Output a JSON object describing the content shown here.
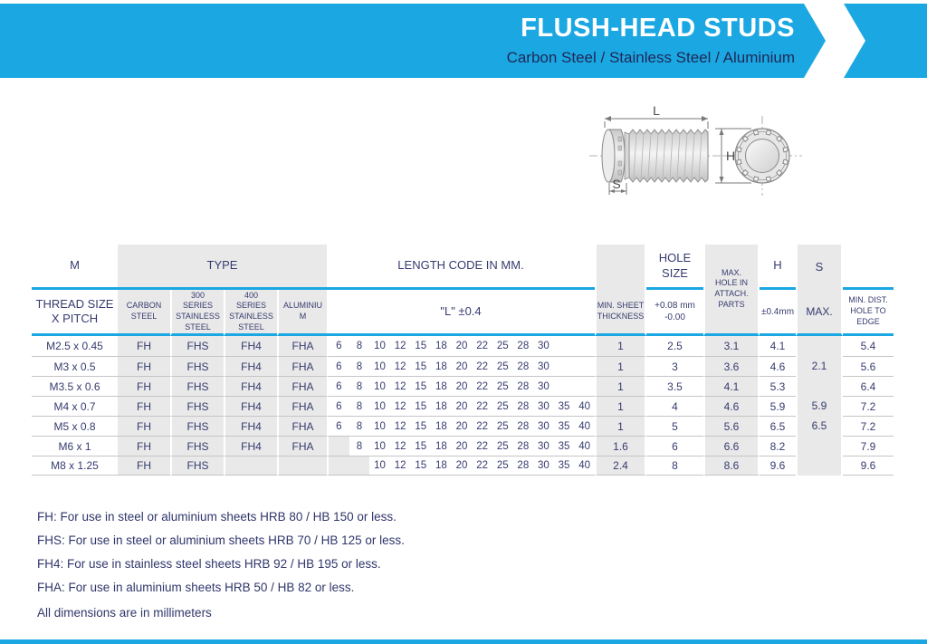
{
  "banner": {
    "title": "FLUSH-HEAD STUDS",
    "subtitle": "Carbon Steel / Stainless Steel / Aluminium",
    "accent_color": "#1ba7e2"
  },
  "diagram": {
    "labels": {
      "length": "L",
      "height": "H",
      "shoulder": "S"
    }
  },
  "table": {
    "group_headers": {
      "m": "M",
      "type": "TYPE",
      "length": "LENGTH CODE IN MM.",
      "hole_size": "HOLE SIZE",
      "h": "H",
      "s": "S"
    },
    "sub_headers": {
      "thread": "THREAD SIZE X PITCH",
      "type_cols": [
        "CARBON STEEL",
        "300 SERIES STAINLESS STEEL",
        "400 SERIES STAINLESS STEEL",
        "ALUMINIUM"
      ],
      "length": "\"L\" ±0.4",
      "min_sheet": "MIN. SHEET THICKNESS",
      "hole_tol": [
        "+0.08 mm",
        "-0.00"
      ],
      "max_hole": "MAX. HOLE IN ATTACH. PARTS",
      "h_tol": "±0.4mm",
      "s_max": "MAX.",
      "min_dist": "MIN. DIST. HOLE TO EDGE"
    },
    "length_slots": [
      6,
      8,
      10,
      12,
      15,
      18,
      20,
      22,
      25,
      28,
      30,
      35,
      40
    ],
    "rows": [
      {
        "thread": "M2.5 x 0.45",
        "types": [
          "FH",
          "FHS",
          "FH4",
          "FHA"
        ],
        "lengths": [
          6,
          8,
          10,
          12,
          15,
          18,
          20,
          22,
          25,
          28,
          30
        ],
        "min_sheet": "1",
        "hole_size": "2.5",
        "max_hole": "3.1",
        "h": "4.1",
        "s": "",
        "min_dist": "5.4"
      },
      {
        "thread": "M3 x 0.5",
        "types": [
          "FH",
          "FHS",
          "FH4",
          "FHA"
        ],
        "lengths": [
          6,
          8,
          10,
          12,
          15,
          18,
          20,
          22,
          25,
          28,
          30
        ],
        "min_sheet": "1",
        "hole_size": "3",
        "max_hole": "3.6",
        "h": "4.6",
        "s": "2.1",
        "min_dist": "5.6"
      },
      {
        "thread": "M3.5 x 0.6",
        "types": [
          "FH",
          "FHS",
          "FH4",
          "FHA"
        ],
        "lengths": [
          6,
          8,
          10,
          12,
          15,
          18,
          20,
          22,
          25,
          28,
          30
        ],
        "min_sheet": "1",
        "hole_size": "3.5",
        "max_hole": "4.1",
        "h": "5.3",
        "s": "",
        "min_dist": "6.4"
      },
      {
        "thread": "M4 x 0.7",
        "types": [
          "FH",
          "FHS",
          "FH4",
          "FHA"
        ],
        "lengths": [
          6,
          8,
          10,
          12,
          15,
          18,
          20,
          22,
          25,
          28,
          30,
          35,
          40
        ],
        "min_sheet": "1",
        "hole_size": "4",
        "max_hole": "4.6",
        "h": "5.9",
        "s": "5.9",
        "min_dist": "7.2"
      },
      {
        "thread": "M5 x 0.8",
        "types": [
          "FH",
          "FHS",
          "FH4",
          "FHA"
        ],
        "lengths": [
          6,
          8,
          10,
          12,
          15,
          18,
          20,
          22,
          25,
          28,
          30,
          35,
          40
        ],
        "min_sheet": "1",
        "hole_size": "5",
        "max_hole": "5.6",
        "h": "6.5",
        "s": "6.5",
        "min_dist": "7.2"
      },
      {
        "thread": "M6 x 1",
        "types": [
          "FH",
          "FHS",
          "FH4",
          "FHA"
        ],
        "lengths": [
          8,
          10,
          12,
          15,
          18,
          20,
          22,
          25,
          28,
          30,
          35,
          40
        ],
        "min_sheet": "1.6",
        "hole_size": "6",
        "max_hole": "6.6",
        "h": "8.2",
        "s": "",
        "min_dist": "7.9"
      },
      {
        "thread": "M8 x 1.25",
        "types": [
          "FH",
          "FHS",
          "",
          ""
        ],
        "lengths": [
          10,
          12,
          15,
          18,
          20,
          22,
          25,
          28,
          30,
          35,
          40
        ],
        "min_sheet": "2.4",
        "hole_size": "8",
        "max_hole": "8.6",
        "h": "9.6",
        "s": "",
        "min_dist": "9.6"
      }
    ]
  },
  "notes": [
    "FH: For use in steel or aluminium sheets HRB 80 / HB 150 or less.",
    "FHS: For use in steel or aluminium sheets HRB 70 / HB 125 or less.",
    "FH4: For use in stainless steel sheets HRB 92 / HB 195 or less.",
    "FHA: For use in aluminium sheets HRB 50 / HB 82 or less.",
    "All dimensions are in millimeters"
  ]
}
